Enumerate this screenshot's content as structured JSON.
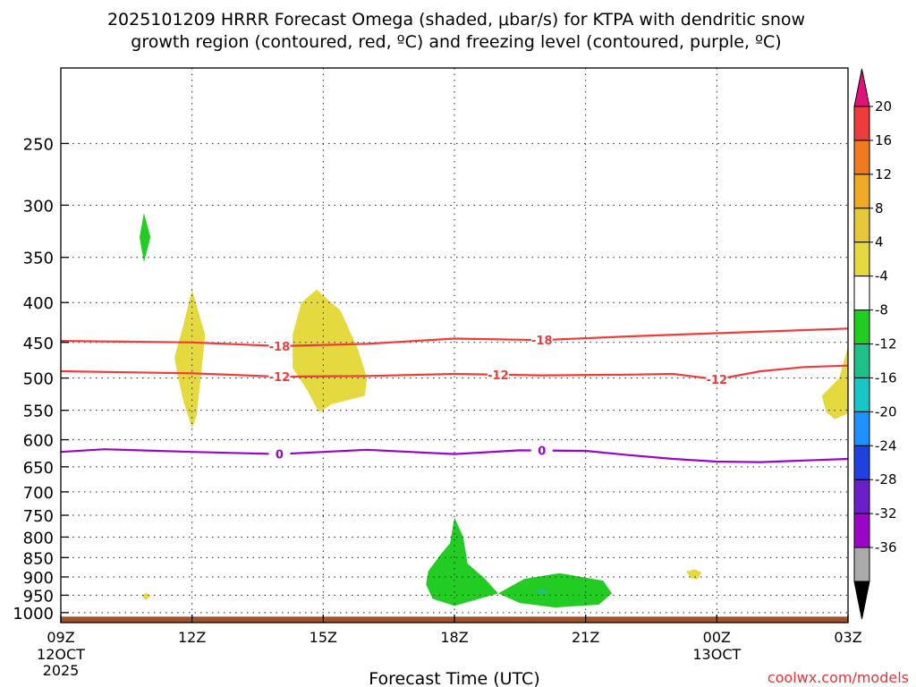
{
  "chart_data": {
    "type": "time-height",
    "title": "2025101209 HRRR Forecast Omega (shaded, μbar/s) for KTPA with dendritic snow growth region (contoured, red, ºC) and freezing level (contoured, purple, ºC)",
    "title_lines": [
      "2025101209 HRRR Forecast Omega (shaded, μbar/s) for KTPA with dendritic snow",
      "growth region (contoured, red, ºC) and freezing level (contoured, purple, ºC)"
    ],
    "xlabel": "Forecast Time (UTC)",
    "ylabel": "",
    "credit": "coolwx.com/models",
    "x_range_hours": [
      0,
      18
    ],
    "y_range_hpa": [
      200,
      1030
    ],
    "x_ticks": [
      {
        "hour": 0,
        "label": "09Z",
        "sub": [
          "12OCT",
          "2025"
        ]
      },
      {
        "hour": 3,
        "label": "12Z",
        "sub": []
      },
      {
        "hour": 6,
        "label": "15Z",
        "sub": []
      },
      {
        "hour": 9,
        "label": "18Z",
        "sub": []
      },
      {
        "hour": 12,
        "label": "21Z",
        "sub": []
      },
      {
        "hour": 15,
        "label": "00Z",
        "sub": [
          "13OCT"
        ]
      },
      {
        "hour": 18,
        "label": "03Z",
        "sub": []
      }
    ],
    "y_ticks": [
      250,
      300,
      350,
      400,
      450,
      500,
      550,
      600,
      650,
      700,
      750,
      800,
      850,
      900,
      950,
      1000
    ],
    "contours": [
      {
        "name": "dgz-minus18",
        "level": -18,
        "label": "-18",
        "color": "#ee3b3b",
        "points": [
          [
            0,
            448
          ],
          [
            3,
            450
          ],
          [
            5,
            455
          ],
          [
            7,
            452
          ],
          [
            9,
            445
          ],
          [
            11,
            447
          ],
          [
            13,
            442
          ],
          [
            15,
            438
          ],
          [
            18,
            432
          ]
        ],
        "label_hours": [
          5,
          11
        ]
      },
      {
        "name": "dgz-minus12",
        "level": -12,
        "label": "-12",
        "color": "#ee3b3b",
        "points": [
          [
            0,
            490
          ],
          [
            3,
            493
          ],
          [
            5,
            498
          ],
          [
            7,
            497
          ],
          [
            9,
            494
          ],
          [
            11,
            496
          ],
          [
            13,
            495
          ],
          [
            14,
            494
          ],
          [
            15,
            502
          ],
          [
            16,
            490
          ],
          [
            17,
            484
          ],
          [
            18,
            482
          ]
        ],
        "label_hours": [
          5,
          10,
          15
        ]
      },
      {
        "name": "freezing-level",
        "level": 0,
        "label": "0",
        "color": "#9a06c8",
        "points": [
          [
            0,
            622
          ],
          [
            1,
            617
          ],
          [
            3,
            622
          ],
          [
            5,
            626
          ],
          [
            7,
            618
          ],
          [
            9,
            626
          ],
          [
            10.5,
            619
          ],
          [
            12,
            620
          ],
          [
            13,
            628
          ],
          [
            14,
            635
          ],
          [
            15,
            640
          ],
          [
            16,
            641
          ],
          [
            18,
            635
          ]
        ],
        "label_hours": [
          5,
          11
        ]
      }
    ],
    "shaded_regions": [
      {
        "name": "omega-pos-4to8-a",
        "range": "4 to 8",
        "color": "#e4d93e",
        "polygon": [
          [
            2.6,
            470
          ],
          [
            2.8,
            428
          ],
          [
            3.0,
            385
          ],
          [
            3.3,
            440
          ],
          [
            3.2,
            500
          ],
          [
            3.1,
            560
          ],
          [
            3.0,
            580
          ],
          [
            2.8,
            535
          ],
          [
            2.65,
            490
          ]
        ]
      },
      {
        "name": "omega-pos-4to8-b",
        "range": "4 to 8",
        "color": "#e4d93e",
        "polygon": [
          [
            5.3,
            440
          ],
          [
            5.5,
            400
          ],
          [
            5.85,
            385
          ],
          [
            6.4,
            410
          ],
          [
            6.8,
            460
          ],
          [
            7.0,
            500
          ],
          [
            6.95,
            527
          ],
          [
            6.2,
            540
          ],
          [
            5.9,
            553
          ],
          [
            5.65,
            520
          ],
          [
            5.3,
            485
          ]
        ]
      },
      {
        "name": "omega-pos-4to8-c",
        "range": "4 to 8",
        "color": "#e4d93e",
        "polygon": [
          [
            17.4,
            527
          ],
          [
            17.8,
            500
          ],
          [
            18,
            455
          ],
          [
            18,
            555
          ],
          [
            17.7,
            565
          ],
          [
            17.5,
            553
          ]
        ]
      },
      {
        "name": "omega-pos-4to8-d",
        "range": "4 to 8",
        "color": "#e4d93e",
        "polygon": [
          [
            14.3,
            885
          ],
          [
            14.5,
            880
          ],
          [
            14.65,
            888
          ],
          [
            14.55,
            907
          ],
          [
            14.4,
            903
          ]
        ]
      },
      {
        "name": "omega-pos-4to8-e",
        "range": "4 to 8",
        "color": "#e4d93e",
        "polygon": [
          [
            1.85,
            952
          ],
          [
            1.95,
            943
          ],
          [
            2.05,
            952
          ],
          [
            1.95,
            962
          ]
        ]
      },
      {
        "name": "omega-neg-4to8-a",
        "range": "-8 to -4",
        "color": "#22cc22",
        "polygon": [
          [
            1.8,
            330
          ],
          [
            1.9,
            307
          ],
          [
            2.05,
            330
          ],
          [
            1.9,
            355
          ]
        ]
      },
      {
        "name": "omega-neg-4to8-b",
        "range": "-8 to -4",
        "color": "#22cc22",
        "polygon": [
          [
            8.4,
            885
          ],
          [
            8.7,
            840
          ],
          [
            8.9,
            815
          ],
          [
            9.0,
            755
          ],
          [
            9.2,
            800
          ],
          [
            9.3,
            865
          ],
          [
            9.7,
            905
          ],
          [
            10.0,
            945
          ],
          [
            9.0,
            980
          ],
          [
            8.5,
            960
          ],
          [
            8.35,
            920
          ]
        ]
      },
      {
        "name": "omega-neg-4to8-c",
        "range": "-8 to -4",
        "color": "#22cc22",
        "polygon": [
          [
            10.0,
            945
          ],
          [
            10.6,
            905
          ],
          [
            11.4,
            890
          ],
          [
            12.4,
            910
          ],
          [
            12.6,
            945
          ],
          [
            12.3,
            977
          ],
          [
            11.3,
            985
          ],
          [
            10.5,
            972
          ]
        ]
      },
      {
        "name": "omega-neg-8to12",
        "range": "-12 to -8",
        "color": "#20c08a",
        "polygon": [
          [
            10.85,
            940
          ],
          [
            11.0,
            932
          ],
          [
            11.15,
            940
          ],
          [
            11.0,
            948
          ]
        ]
      }
    ],
    "ground": {
      "name": "terrain",
      "color": "#a0522d",
      "top_hpa": 1012
    },
    "colorbar": {
      "labels": [
        "20",
        "16",
        "12",
        "8",
        "4",
        "-4",
        "-8",
        "-12",
        "-16",
        "-20",
        "-24",
        "-28",
        "-32",
        "-36"
      ],
      "top_color": "#e0127a",
      "bottom_color": "#000000",
      "colors": [
        "#ee3b3b",
        "#ee7c1f",
        "#efaa25",
        "#e6c93a",
        "#e4d93e",
        "#ffffff",
        "#22cc22",
        "#20c08a",
        "#18c6c6",
        "#1e90ff",
        "#2040e0",
        "#6a1fc8",
        "#9a06c8",
        "#aaaaaa"
      ]
    }
  }
}
